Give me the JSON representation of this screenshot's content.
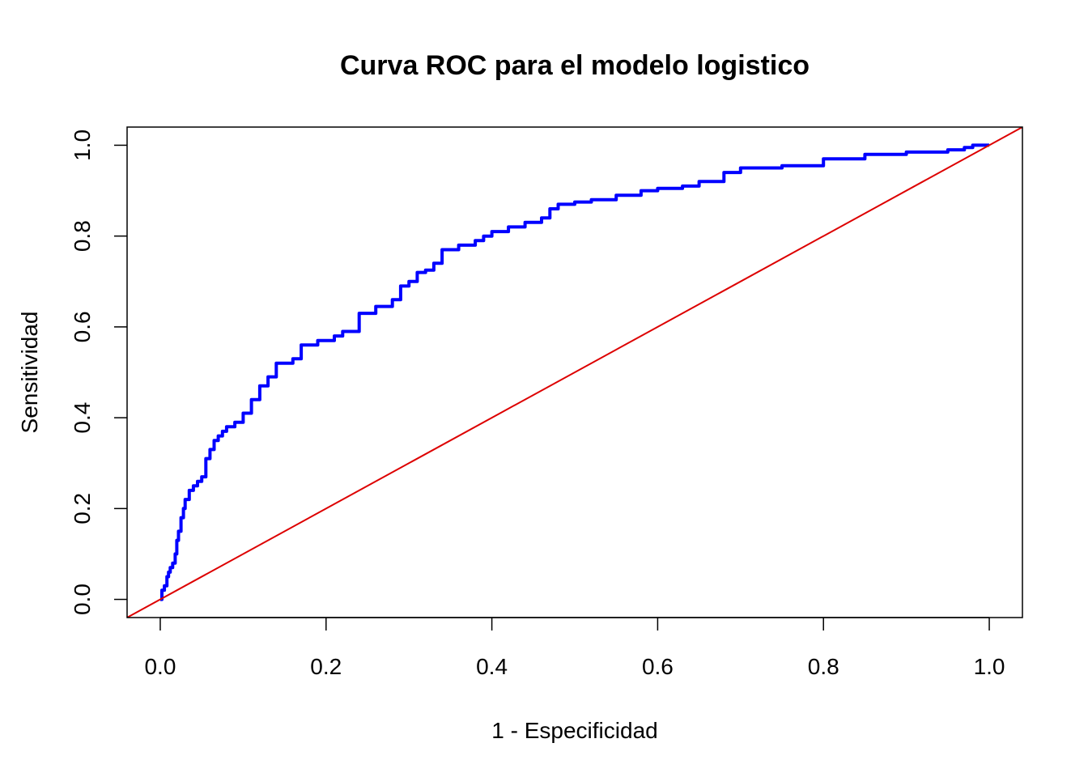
{
  "chart_data": {
    "type": "line",
    "title": "Curva ROC para el modelo logistico",
    "xlabel": "1 - Especificidad",
    "ylabel": "Sensitividad",
    "xlim": [
      -0.04,
      1.04
    ],
    "ylim": [
      -0.04,
      1.04
    ],
    "x_ticks": [
      "0.0",
      "0.2",
      "0.4",
      "0.6",
      "0.8",
      "1.0"
    ],
    "y_ticks": [
      "0.0",
      "0.2",
      "0.4",
      "0.6",
      "0.8",
      "1.0"
    ],
    "grid": false,
    "series": [
      {
        "color": "#0000ff",
        "x": [
          0.0,
          0.002,
          0.005,
          0.008,
          0.01,
          0.012,
          0.015,
          0.018,
          0.02,
          0.022,
          0.025,
          0.028,
          0.03,
          0.035,
          0.04,
          0.045,
          0.05,
          0.055,
          0.06,
          0.065,
          0.07,
          0.075,
          0.08,
          0.09,
          0.1,
          0.11,
          0.12,
          0.13,
          0.14,
          0.16,
          0.17,
          0.19,
          0.21,
          0.22,
          0.24,
          0.26,
          0.28,
          0.29,
          0.3,
          0.31,
          0.32,
          0.33,
          0.34,
          0.36,
          0.38,
          0.39,
          0.4,
          0.42,
          0.44,
          0.46,
          0.47,
          0.48,
          0.5,
          0.52,
          0.55,
          0.58,
          0.6,
          0.63,
          0.65,
          0.68,
          0.7,
          0.75,
          0.8,
          0.85,
          0.9,
          0.95,
          0.97,
          0.98,
          1.0
        ],
        "y": [
          0.0,
          0.02,
          0.03,
          0.05,
          0.06,
          0.07,
          0.08,
          0.1,
          0.13,
          0.15,
          0.18,
          0.2,
          0.22,
          0.24,
          0.25,
          0.26,
          0.27,
          0.31,
          0.33,
          0.35,
          0.36,
          0.37,
          0.38,
          0.39,
          0.41,
          0.44,
          0.47,
          0.49,
          0.52,
          0.53,
          0.56,
          0.57,
          0.58,
          0.59,
          0.63,
          0.645,
          0.66,
          0.69,
          0.7,
          0.72,
          0.725,
          0.74,
          0.77,
          0.78,
          0.79,
          0.8,
          0.81,
          0.82,
          0.83,
          0.84,
          0.86,
          0.87,
          0.875,
          0.88,
          0.89,
          0.9,
          0.905,
          0.91,
          0.92,
          0.94,
          0.95,
          0.955,
          0.97,
          0.98,
          0.985,
          0.99,
          0.995,
          1.0,
          1.0
        ]
      },
      {
        "color": "#dd0000",
        "x": [
          -0.04,
          1.04
        ],
        "y": [
          -0.04,
          1.04
        ]
      }
    ]
  }
}
